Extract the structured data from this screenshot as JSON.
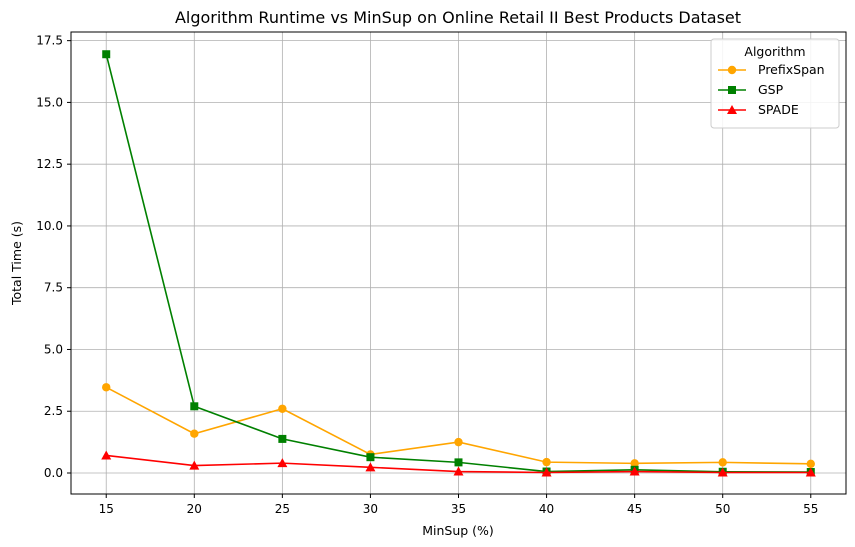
{
  "chart_data": {
    "type": "line",
    "title": "Algorithm Runtime vs MinSup on Online Retail II Best Products Dataset",
    "xlabel": "MinSup (%)",
    "ylabel": "Total Time (s)",
    "x": [
      15,
      20,
      25,
      30,
      35,
      40,
      45,
      50,
      55
    ],
    "xticks": [
      "15",
      "20",
      "25",
      "30",
      "35",
      "40",
      "45",
      "50",
      "55"
    ],
    "yticks": [
      "0.0",
      "2.5",
      "5.0",
      "7.5",
      "10.0",
      "12.5",
      "15.0",
      "17.5"
    ],
    "ytick_values": [
      0,
      2.5,
      5,
      7.5,
      10,
      12.5,
      15,
      17.5
    ],
    "xlim": [
      13.0,
      57.0
    ],
    "ylim": [
      -0.85,
      17.85
    ],
    "grid": true,
    "legend_title": "Algorithm",
    "legend_position": "top-right",
    "series": [
      {
        "name": "PrefixSpan",
        "color": "#ffa500",
        "marker": "circle",
        "values": [
          3.47,
          1.59,
          2.6,
          0.75,
          1.25,
          0.44,
          0.39,
          0.43,
          0.37
        ]
      },
      {
        "name": "GSP",
        "color": "#008000",
        "marker": "square",
        "values": [
          16.95,
          2.7,
          1.38,
          0.64,
          0.43,
          0.06,
          0.13,
          0.05,
          0.04
        ]
      },
      {
        "name": "SPADE",
        "color": "#ff0000",
        "marker": "triangle",
        "values": [
          0.71,
          0.3,
          0.4,
          0.23,
          0.06,
          0.02,
          0.06,
          0.02,
          0.02
        ]
      }
    ]
  }
}
